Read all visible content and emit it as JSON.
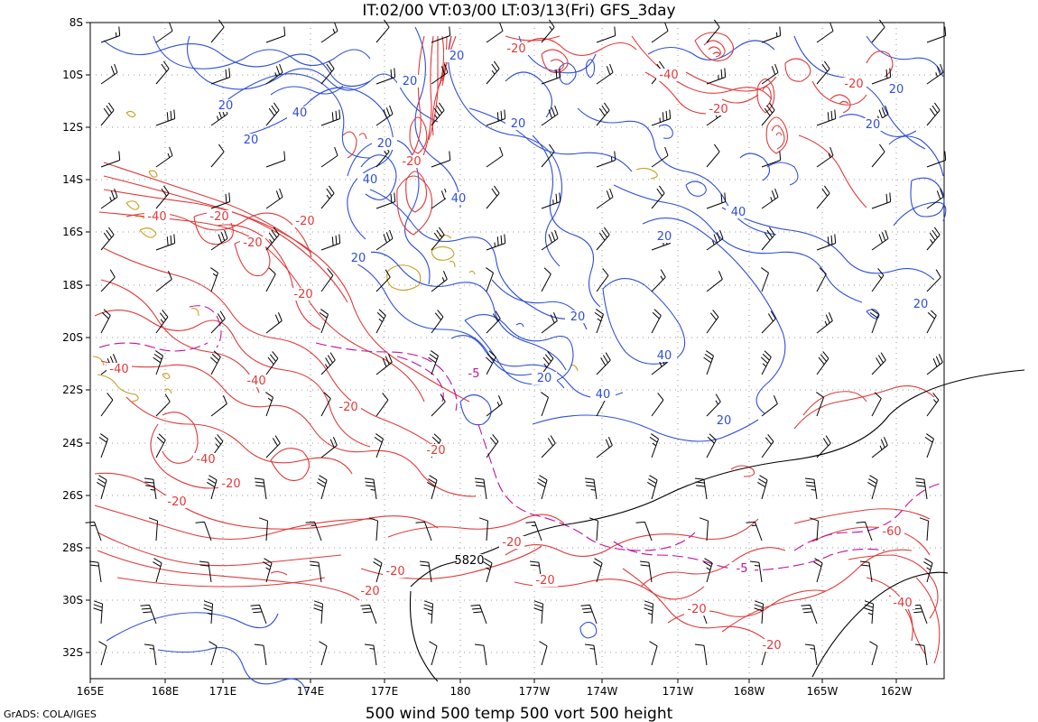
{
  "map": {
    "title": "IT:02/00  VT:03/00  LT:03/13(Fri)  GFS_3day",
    "bottom_caption": "500 wind 500 temp 500 vort 500 height",
    "credit": "GrADS: COLA/IGES",
    "lon_labels": [
      "165E",
      "168E",
      "171E",
      "174E",
      "177E",
      "180",
      "177W",
      "174W",
      "171W",
      "168W",
      "165W",
      "162W"
    ],
    "lat_labels": [
      "8S",
      "10S",
      "12S",
      "14S",
      "16S",
      "18S",
      "20S",
      "22S",
      "24S",
      "26S",
      "28S",
      "30S",
      "32S"
    ],
    "colors": {
      "vorticity_positive": "#2f4fd8",
      "vorticity_negative": "#e03a3a",
      "temperature": "#c3119b",
      "height": "#000000",
      "wind_barbs": "#000000",
      "land": "#c8a020",
      "grid": "#9a9a9a"
    },
    "contour_labels": {
      "blue": [
        "20",
        "20",
        "40",
        "20",
        "20",
        "40",
        "20",
        "40",
        "20",
        "20",
        "20",
        "40",
        "20",
        "20",
        "40",
        "40",
        "20",
        "20",
        "20",
        "20"
      ],
      "red": [
        "-20",
        "-40",
        "-20",
        "-20",
        "-40",
        "-20",
        "-20",
        "-20",
        "-20",
        "-40",
        "-40",
        "-20",
        "-20",
        "-20",
        "-40",
        "-20",
        "-20",
        "-20",
        "-20",
        "-20",
        "-20",
        "-60",
        "-40",
        "-20",
        "-20"
      ],
      "magenta": [
        "-5",
        "-5"
      ],
      "black": [
        "5820"
      ]
    }
  }
}
